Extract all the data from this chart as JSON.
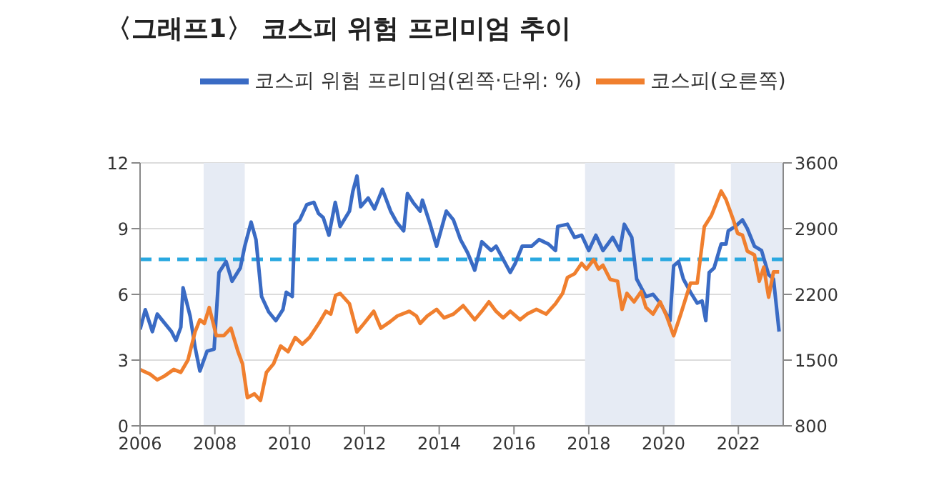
{
  "chart_data": {
    "type": "line",
    "title": "〈그래프1〉 코스피 위험 프리미엄 추이",
    "xlim": [
      2006,
      2023.2
    ],
    "xticks": [
      2006,
      2008,
      2010,
      2012,
      2014,
      2016,
      2018,
      2020,
      2022
    ],
    "ylim": [
      0,
      12
    ],
    "yticks": [
      0,
      3,
      6,
      9,
      12
    ],
    "y2lim": [
      800,
      3600
    ],
    "y2ticks": [
      800,
      1500,
      2200,
      2900,
      3600
    ],
    "grid": "y",
    "legend": "top",
    "marker": "none",
    "line_style": "solid",
    "bands": [
      {
        "axis": "x",
        "from": 2007.7,
        "to": 2008.8,
        "color": "#e6ebf4"
      },
      {
        "axis": "x",
        "from": 2017.9,
        "to": 2020.3,
        "color": "#e6ebf4"
      },
      {
        "axis": "x",
        "from": 2021.8,
        "to": 2023.2,
        "color": "#e6ebf4"
      }
    ],
    "ref_lines": [
      {
        "axis": "y",
        "value": 7.6,
        "color": "#29a8e0",
        "line_style": "dashed"
      }
    ],
    "series": [
      {
        "name": "코스피 위험 프리미엄(왼쪽·단위: %)",
        "color": "#3a6bc4",
        "x": [
          2006.0,
          2006.14,
          2006.33,
          2006.46,
          2006.65,
          2006.84,
          2006.96,
          2007.09,
          2007.15,
          2007.34,
          2007.47,
          2007.6,
          2007.79,
          2007.98,
          2008.11,
          2008.3,
          2008.46,
          2008.68,
          2008.8,
          2008.97,
          2009.1,
          2009.25,
          2009.44,
          2009.63,
          2009.82,
          2009.91,
          2010.07,
          2010.14,
          2010.27,
          2010.46,
          2010.65,
          2010.77,
          2010.9,
          2011.05,
          2011.22,
          2011.35,
          2011.6,
          2011.69,
          2011.8,
          2011.9,
          2012.1,
          2012.27,
          2012.48,
          2012.7,
          2012.86,
          2013.05,
          2013.15,
          2013.3,
          2013.49,
          2013.55,
          2013.74,
          2013.93,
          2014.19,
          2014.38,
          2014.57,
          2014.76,
          2014.95,
          2015.14,
          2015.39,
          2015.52,
          2015.71,
          2015.9,
          2016.03,
          2016.22,
          2016.47,
          2016.67,
          2016.92,
          2017.11,
          2017.17,
          2017.43,
          2017.62,
          2017.81,
          2018.0,
          2018.19,
          2018.38,
          2018.64,
          2018.83,
          2018.95,
          2019.15,
          2019.28,
          2019.53,
          2019.72,
          2019.91,
          2020.04,
          2020.17,
          2020.27,
          2020.4,
          2020.53,
          2020.72,
          2020.9,
          2021.03,
          2021.13,
          2021.22,
          2021.35,
          2021.54,
          2021.67,
          2021.73,
          2021.92,
          2022.11,
          2022.24,
          2022.43,
          2022.62,
          2022.81,
          2022.94,
          2023.09
        ],
        "values": [
          4.4,
          5.3,
          4.3,
          5.1,
          4.7,
          4.3,
          3.9,
          4.5,
          6.3,
          5.0,
          3.6,
          2.5,
          3.4,
          3.5,
          7.0,
          7.5,
          6.6,
          7.2,
          8.2,
          9.3,
          8.5,
          5.9,
          5.2,
          4.8,
          5.3,
          6.1,
          5.9,
          9.2,
          9.4,
          10.1,
          10.2,
          9.7,
          9.5,
          8.7,
          10.2,
          9.1,
          9.8,
          10.7,
          11.4,
          10.0,
          10.4,
          9.9,
          10.8,
          9.8,
          9.3,
          8.9,
          10.6,
          10.2,
          9.8,
          10.3,
          9.3,
          8.2,
          9.8,
          9.4,
          8.5,
          7.9,
          7.1,
          8.4,
          8.0,
          8.2,
          7.6,
          7.0,
          7.4,
          8.2,
          8.2,
          8.5,
          8.3,
          8.0,
          9.1,
          9.2,
          8.6,
          8.7,
          8.0,
          8.7,
          8.0,
          8.6,
          8.0,
          9.2,
          8.6,
          6.7,
          5.9,
          6.0,
          5.6,
          5.2,
          4.8,
          7.3,
          7.5,
          6.7,
          6.1,
          5.6,
          5.7,
          4.8,
          7.0,
          7.2,
          8.3,
          8.3,
          8.9,
          9.1,
          9.4,
          9.0,
          8.2,
          8.0,
          6.9,
          6.7,
          4.3
        ]
      },
      {
        "name": "코스피(오른쪽)",
        "color": "#f07f2e",
        "axis": "y2",
        "x": [
          2006.0,
          2006.27,
          2006.46,
          2006.65,
          2006.9,
          2007.09,
          2007.28,
          2007.47,
          2007.6,
          2007.72,
          2007.85,
          2008.04,
          2008.24,
          2008.43,
          2008.62,
          2008.74,
          2008.87,
          2009.06,
          2009.22,
          2009.38,
          2009.57,
          2009.76,
          2009.96,
          2010.15,
          2010.34,
          2010.53,
          2010.78,
          2010.97,
          2011.1,
          2011.23,
          2011.35,
          2011.6,
          2011.8,
          2011.99,
          2012.25,
          2012.44,
          2012.69,
          2012.88,
          2013.2,
          2013.39,
          2013.49,
          2013.68,
          2013.93,
          2014.13,
          2014.38,
          2014.64,
          2014.95,
          2015.14,
          2015.33,
          2015.52,
          2015.71,
          2015.9,
          2016.16,
          2016.35,
          2016.6,
          2016.86,
          2017.11,
          2017.3,
          2017.43,
          2017.62,
          2017.81,
          2017.94,
          2018.13,
          2018.26,
          2018.38,
          2018.57,
          2018.77,
          2018.89,
          2019.02,
          2019.21,
          2019.4,
          2019.53,
          2019.72,
          2019.91,
          2020.08,
          2020.27,
          2020.46,
          2020.72,
          2020.9,
          2021.09,
          2021.28,
          2021.54,
          2021.67,
          2021.86,
          2021.98,
          2022.11,
          2022.24,
          2022.43,
          2022.56,
          2022.68,
          2022.81,
          2022.94,
          2023.09
        ],
        "values": [
          1400,
          1350,
          1290,
          1330,
          1400,
          1370,
          1500,
          1800,
          1930,
          1890,
          2060,
          1760,
          1760,
          1840,
          1590,
          1460,
          1100,
          1140,
          1070,
          1370,
          1460,
          1650,
          1590,
          1740,
          1670,
          1740,
          1890,
          2020,
          1990,
          2190,
          2210,
          2100,
          1800,
          1890,
          2020,
          1840,
          1910,
          1970,
          2020,
          1970,
          1890,
          1970,
          2040,
          1950,
          1990,
          2080,
          1930,
          2020,
          2120,
          2020,
          1950,
          2020,
          1930,
          1990,
          2040,
          1990,
          2100,
          2210,
          2380,
          2420,
          2530,
          2470,
          2570,
          2470,
          2510,
          2360,
          2340,
          2040,
          2210,
          2120,
          2230,
          2060,
          1990,
          2120,
          1970,
          1760,
          1990,
          2320,
          2320,
          2920,
          3040,
          3300,
          3210,
          3000,
          2850,
          2830,
          2660,
          2620,
          2340,
          2490,
          2170,
          2440,
          2440
        ]
      }
    ]
  }
}
